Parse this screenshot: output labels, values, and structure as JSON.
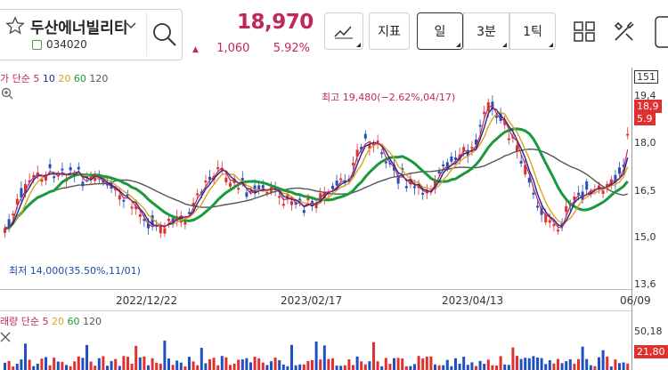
{
  "stock": {
    "name": "두산에너빌리티",
    "code": "034020",
    "price": "18,970",
    "change_symbol": "▲",
    "change": "1,060",
    "change_pct": "5.92%"
  },
  "toolbar": {
    "indicator_label": "지표",
    "day_label": "일",
    "min3_label": "3분",
    "tick1_label": "1틱"
  },
  "chart": {
    "legend_prefix": "가 단순",
    "ma_labels": [
      "5",
      "10",
      "20",
      "60",
      "120"
    ],
    "ma_colors": [
      "#c0285a",
      "#1f2a8a",
      "#e0a020",
      "#1a9a3a",
      "#555555"
    ],
    "max_label": "최고 19,480(−2.62%,04/17)",
    "min_label": "최저 14,000(35.50%,11/01)",
    "x_ticks": [
      "2022/12/22",
      "2023/02/17",
      "2023/04/13",
      "06/09"
    ],
    "y_ticks": [
      "151",
      "19,4",
      "18,0",
      "16,5",
      "15,0",
      "13,6"
    ],
    "price_tag": "18,9",
    "pct_tag": "5.9"
  },
  "volume": {
    "legend_prefix": "래량 단순",
    "ma_labels": [
      "5",
      "20",
      "60",
      "120"
    ],
    "ma_colors": [
      "#c0285a",
      "#e0a020",
      "#1a9a3a",
      "#555555"
    ],
    "y_tick": "50,18",
    "tag": "21,80"
  },
  "colors": {
    "up": "#e03030",
    "down": "#2050c0",
    "accent": "#c0285a"
  }
}
